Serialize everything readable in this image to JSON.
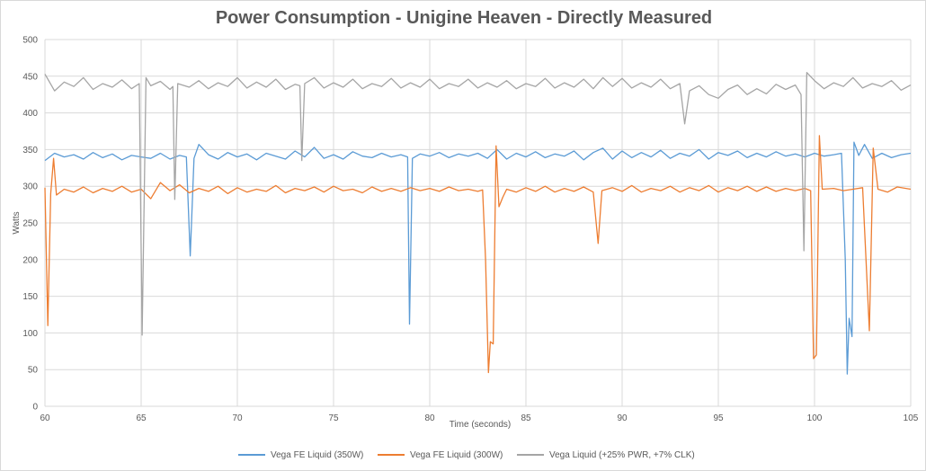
{
  "chart_data": {
    "type": "line",
    "title": "Power Consumption - Unigine Heaven - Directly Measured",
    "xlabel": "Time (seconds)",
    "ylabel": "Watts",
    "xlim": [
      60,
      105
    ],
    "ylim": [
      0,
      500
    ],
    "x_ticks": [
      60,
      65,
      70,
      75,
      80,
      85,
      90,
      95,
      100,
      105
    ],
    "y_ticks": [
      0,
      50,
      100,
      150,
      200,
      250,
      300,
      350,
      400,
      450,
      500
    ],
    "grid": true,
    "legend_position": "bottom",
    "series": [
      {
        "name": "Vega FE Liquid (350W)",
        "color": "#5b9bd5",
        "points": [
          [
            60,
            335
          ],
          [
            60.5,
            345
          ],
          [
            61,
            340
          ],
          [
            61.5,
            343
          ],
          [
            62,
            337
          ],
          [
            62.5,
            346
          ],
          [
            63,
            339
          ],
          [
            63.5,
            344
          ],
          [
            64,
            336
          ],
          [
            64.5,
            342
          ],
          [
            65,
            340
          ],
          [
            65.5,
            338
          ],
          [
            66,
            345
          ],
          [
            66.5,
            337
          ],
          [
            67,
            342
          ],
          [
            67.35,
            340
          ],
          [
            67.55,
            205
          ],
          [
            67.75,
            338
          ],
          [
            68,
            357
          ],
          [
            68.5,
            343
          ],
          [
            69,
            337
          ],
          [
            69.5,
            346
          ],
          [
            70,
            340
          ],
          [
            70.5,
            344
          ],
          [
            71,
            336
          ],
          [
            71.5,
            345
          ],
          [
            72,
            341
          ],
          [
            72.5,
            337
          ],
          [
            73,
            348
          ],
          [
            73.5,
            340
          ],
          [
            74,
            353
          ],
          [
            74.5,
            338
          ],
          [
            75,
            343
          ],
          [
            75.5,
            337
          ],
          [
            76,
            347
          ],
          [
            76.5,
            341
          ],
          [
            77,
            339
          ],
          [
            77.5,
            345
          ],
          [
            78,
            340
          ],
          [
            78.5,
            343
          ],
          [
            78.85,
            340
          ],
          [
            78.95,
            112
          ],
          [
            79.1,
            338
          ],
          [
            79.5,
            344
          ],
          [
            80,
            341
          ],
          [
            80.5,
            346
          ],
          [
            81,
            339
          ],
          [
            81.5,
            344
          ],
          [
            82,
            341
          ],
          [
            82.5,
            345
          ],
          [
            83,
            338
          ],
          [
            83.5,
            350
          ],
          [
            84,
            337
          ],
          [
            84.5,
            345
          ],
          [
            85,
            340
          ],
          [
            85.5,
            347
          ],
          [
            86,
            339
          ],
          [
            86.5,
            344
          ],
          [
            87,
            341
          ],
          [
            87.5,
            348
          ],
          [
            88,
            336
          ],
          [
            88.5,
            346
          ],
          [
            89,
            352
          ],
          [
            89.5,
            337
          ],
          [
            90,
            348
          ],
          [
            90.5,
            339
          ],
          [
            91,
            346
          ],
          [
            91.5,
            340
          ],
          [
            92,
            349
          ],
          [
            92.5,
            338
          ],
          [
            93,
            345
          ],
          [
            93.5,
            341
          ],
          [
            94,
            350
          ],
          [
            94.5,
            337
          ],
          [
            95,
            346
          ],
          [
            95.5,
            342
          ],
          [
            96,
            348
          ],
          [
            96.5,
            339
          ],
          [
            97,
            345
          ],
          [
            97.5,
            340
          ],
          [
            98,
            347
          ],
          [
            98.5,
            341
          ],
          [
            99,
            344
          ],
          [
            99.5,
            340
          ],
          [
            100,
            345
          ],
          [
            100.5,
            341
          ],
          [
            101,
            343
          ],
          [
            101.4,
            345
          ],
          [
            101.6,
            200
          ],
          [
            101.7,
            44
          ],
          [
            101.8,
            120
          ],
          [
            101.95,
            95
          ],
          [
            102.05,
            360
          ],
          [
            102.3,
            342
          ],
          [
            102.6,
            357
          ],
          [
            103,
            338
          ],
          [
            103.5,
            345
          ],
          [
            104,
            339
          ],
          [
            104.5,
            343
          ],
          [
            105,
            345
          ]
        ]
      },
      {
        "name": "Vega FE Liquid (300W)",
        "color": "#ed7d31",
        "points": [
          [
            60,
            298
          ],
          [
            60.15,
            110
          ],
          [
            60.3,
            290
          ],
          [
            60.45,
            338
          ],
          [
            60.6,
            288
          ],
          [
            61,
            296
          ],
          [
            61.5,
            292
          ],
          [
            62,
            299
          ],
          [
            62.5,
            291
          ],
          [
            63,
            297
          ],
          [
            63.5,
            293
          ],
          [
            64,
            300
          ],
          [
            64.5,
            292
          ],
          [
            65,
            296
          ],
          [
            65.5,
            283
          ],
          [
            66,
            305
          ],
          [
            66.5,
            294
          ],
          [
            67,
            302
          ],
          [
            67.5,
            291
          ],
          [
            68,
            297
          ],
          [
            68.5,
            293
          ],
          [
            69,
            300
          ],
          [
            69.5,
            290
          ],
          [
            70,
            298
          ],
          [
            70.5,
            292
          ],
          [
            71,
            296
          ],
          [
            71.5,
            293
          ],
          [
            72,
            301
          ],
          [
            72.5,
            291
          ],
          [
            73,
            297
          ],
          [
            73.5,
            294
          ],
          [
            74,
            299
          ],
          [
            74.5,
            292
          ],
          [
            75,
            300
          ],
          [
            75.5,
            294
          ],
          [
            76,
            296
          ],
          [
            76.5,
            291
          ],
          [
            77,
            299
          ],
          [
            77.5,
            293
          ],
          [
            78,
            297
          ],
          [
            78.5,
            293
          ],
          [
            79,
            298
          ],
          [
            79.5,
            294
          ],
          [
            80,
            297
          ],
          [
            80.5,
            293
          ],
          [
            81,
            299
          ],
          [
            81.5,
            294
          ],
          [
            82,
            296
          ],
          [
            82.5,
            293
          ],
          [
            82.75,
            295
          ],
          [
            82.9,
            200
          ],
          [
            83.05,
            46
          ],
          [
            83.15,
            88
          ],
          [
            83.3,
            85
          ],
          [
            83.45,
            355
          ],
          [
            83.6,
            272
          ],
          [
            83.8,
            285
          ],
          [
            84,
            296
          ],
          [
            84.5,
            292
          ],
          [
            85,
            298
          ],
          [
            85.5,
            293
          ],
          [
            86,
            300
          ],
          [
            86.5,
            292
          ],
          [
            87,
            297
          ],
          [
            87.5,
            293
          ],
          [
            88,
            299
          ],
          [
            88.5,
            292
          ],
          [
            88.75,
            222
          ],
          [
            88.95,
            294
          ],
          [
            89.5,
            298
          ],
          [
            90,
            293
          ],
          [
            90.5,
            301
          ],
          [
            91,
            292
          ],
          [
            91.5,
            297
          ],
          [
            92,
            294
          ],
          [
            92.5,
            300
          ],
          [
            93,
            292
          ],
          [
            93.5,
            298
          ],
          [
            94,
            294
          ],
          [
            94.5,
            301
          ],
          [
            95,
            292
          ],
          [
            95.5,
            298
          ],
          [
            96,
            294
          ],
          [
            96.5,
            300
          ],
          [
            97,
            293
          ],
          [
            97.5,
            299
          ],
          [
            98,
            293
          ],
          [
            98.5,
            297
          ],
          [
            99,
            294
          ],
          [
            99.5,
            297
          ],
          [
            99.8,
            294
          ],
          [
            99.95,
            65
          ],
          [
            100.1,
            70
          ],
          [
            100.25,
            369
          ],
          [
            100.4,
            296
          ],
          [
            101,
            297
          ],
          [
            101.5,
            294
          ],
          [
            102,
            296
          ],
          [
            102.5,
            298
          ],
          [
            102.85,
            103
          ],
          [
            103.05,
            352
          ],
          [
            103.3,
            296
          ],
          [
            103.8,
            292
          ],
          [
            104.3,
            299
          ],
          [
            105,
            296
          ]
        ]
      },
      {
        "name": "Vega Liquid (+25% PWR, +7% CLK)",
        "color": "#a5a5a5",
        "points": [
          [
            60,
            453
          ],
          [
            60.5,
            430
          ],
          [
            61,
            442
          ],
          [
            61.5,
            436
          ],
          [
            62,
            448
          ],
          [
            62.5,
            432
          ],
          [
            63,
            440
          ],
          [
            63.5,
            435
          ],
          [
            64,
            445
          ],
          [
            64.5,
            433
          ],
          [
            64.9,
            440
          ],
          [
            65.05,
            97
          ],
          [
            65.25,
            448
          ],
          [
            65.5,
            437
          ],
          [
            66,
            443
          ],
          [
            66.5,
            432
          ],
          [
            66.65,
            436
          ],
          [
            66.75,
            282
          ],
          [
            66.9,
            440
          ],
          [
            67.5,
            435
          ],
          [
            68,
            444
          ],
          [
            68.5,
            433
          ],
          [
            69,
            441
          ],
          [
            69.5,
            436
          ],
          [
            70,
            448
          ],
          [
            70.5,
            434
          ],
          [
            71,
            442
          ],
          [
            71.5,
            435
          ],
          [
            72,
            446
          ],
          [
            72.5,
            432
          ],
          [
            73,
            439
          ],
          [
            73.25,
            437
          ],
          [
            73.35,
            335
          ],
          [
            73.5,
            440
          ],
          [
            74,
            448
          ],
          [
            74.5,
            434
          ],
          [
            75,
            441
          ],
          [
            75.5,
            435
          ],
          [
            76,
            446
          ],
          [
            76.5,
            433
          ],
          [
            77,
            440
          ],
          [
            77.5,
            436
          ],
          [
            78,
            447
          ],
          [
            78.5,
            434
          ],
          [
            79,
            441
          ],
          [
            79.5,
            435
          ],
          [
            80,
            446
          ],
          [
            80.5,
            433
          ],
          [
            81,
            440
          ],
          [
            81.5,
            436
          ],
          [
            82,
            446
          ],
          [
            82.5,
            434
          ],
          [
            83,
            441
          ],
          [
            83.5,
            435
          ],
          [
            84,
            444
          ],
          [
            84.5,
            433
          ],
          [
            85,
            440
          ],
          [
            85.5,
            436
          ],
          [
            86,
            447
          ],
          [
            86.5,
            434
          ],
          [
            87,
            441
          ],
          [
            87.5,
            435
          ],
          [
            88,
            446
          ],
          [
            88.5,
            433
          ],
          [
            89,
            448
          ],
          [
            89.5,
            436
          ],
          [
            90,
            447
          ],
          [
            90.5,
            434
          ],
          [
            91,
            441
          ],
          [
            91.5,
            435
          ],
          [
            92,
            446
          ],
          [
            92.5,
            433
          ],
          [
            93,
            440
          ],
          [
            93.25,
            385
          ],
          [
            93.5,
            430
          ],
          [
            94,
            437
          ],
          [
            94.5,
            425
          ],
          [
            95,
            420
          ],
          [
            95.5,
            432
          ],
          [
            96,
            438
          ],
          [
            96.5,
            425
          ],
          [
            97,
            433
          ],
          [
            97.5,
            426
          ],
          [
            98,
            439
          ],
          [
            98.5,
            432
          ],
          [
            99,
            438
          ],
          [
            99.3,
            425
          ],
          [
            99.45,
            212
          ],
          [
            99.6,
            455
          ],
          [
            100,
            444
          ],
          [
            100.5,
            433
          ],
          [
            101,
            441
          ],
          [
            101.5,
            436
          ],
          [
            102,
            448
          ],
          [
            102.5,
            434
          ],
          [
            103,
            440
          ],
          [
            103.5,
            436
          ],
          [
            104,
            444
          ],
          [
            104.5,
            431
          ],
          [
            105,
            438
          ]
        ]
      }
    ]
  }
}
